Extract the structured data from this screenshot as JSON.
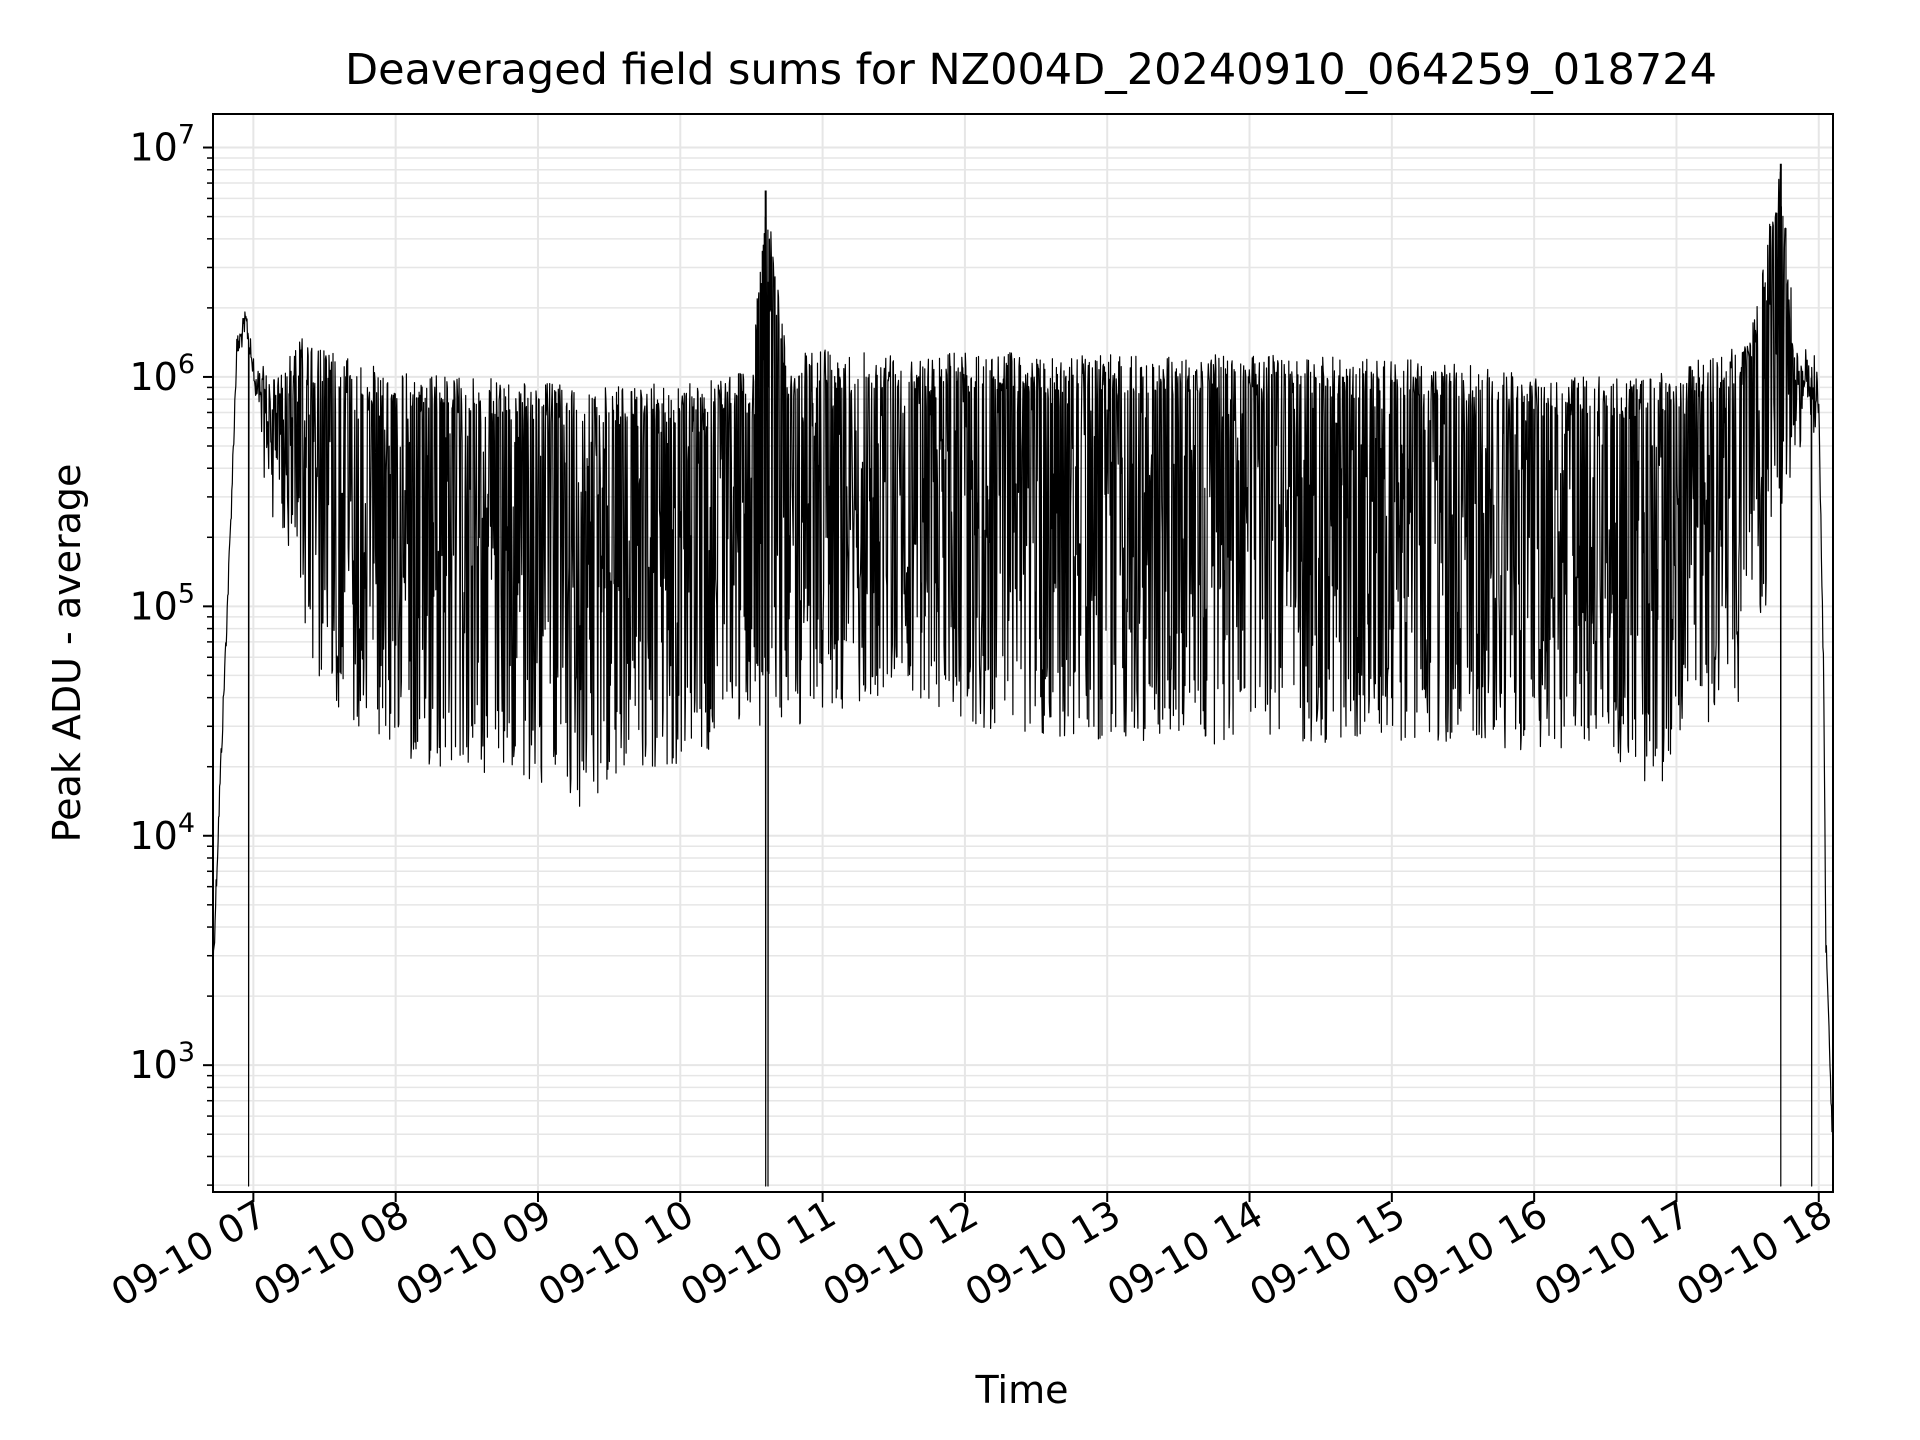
{
  "chart_data": {
    "type": "line",
    "title": "Deaveraged field sums for NZ004D_20240910_064259_018724",
    "xlabel": "Time",
    "ylabel": "Peak ADU - average",
    "yscale": "log",
    "ylim": [
      280,
      14000000
    ],
    "xlim": [
      "2024-09-10 06:42:59",
      "2024-09-10 18:06:00"
    ],
    "x_tick_values": [
      "2024-09-10 07:00",
      "2024-09-10 08:00",
      "2024-09-10 09:00",
      "2024-09-10 10:00",
      "2024-09-10 11:00",
      "2024-09-10 12:00",
      "2024-09-10 13:00",
      "2024-09-10 14:00",
      "2024-09-10 15:00",
      "2024-09-10 16:00",
      "2024-09-10 17:00",
      "2024-09-10 18:00"
    ],
    "x_tick_labels": [
      "09-10 07",
      "09-10 08",
      "09-10 09",
      "09-10 10",
      "09-10 11",
      "09-10 12",
      "09-10 13",
      "09-10 14",
      "09-10 15",
      "09-10 16",
      "09-10 17",
      "09-10 18"
    ],
    "y_ticks": [
      {
        "value": 1000,
        "base": "10",
        "exp": "3"
      },
      {
        "value": 10000,
        "base": "10",
        "exp": "4"
      },
      {
        "value": 100000,
        "base": "10",
        "exp": "5"
      },
      {
        "value": 1000000,
        "base": "10",
        "exp": "6"
      },
      {
        "value": 10000000,
        "base": "10",
        "exp": "7"
      }
    ],
    "grid": true,
    "grid_minor": true,
    "line_color": "#000000",
    "grid_color": "#e6e6e6",
    "series": [
      {
        "envelope_upper": [
          {
            "x": "06:43",
            "y": 3000
          },
          {
            "x": "06:46",
            "y": 20000
          },
          {
            "x": "06:50",
            "y": 200000
          },
          {
            "x": "06:53",
            "y": 1500000
          },
          {
            "x": "06:57",
            "y": 2000000
          },
          {
            "x": "07:00",
            "y": 1200000
          },
          {
            "x": "07:10",
            "y": 1000000
          },
          {
            "x": "07:20",
            "y": 1500000
          },
          {
            "x": "07:40",
            "y": 1200000
          },
          {
            "x": "08:00",
            "y": 1050000
          },
          {
            "x": "08:30",
            "y": 1000000
          },
          {
            "x": "09:00",
            "y": 950000
          },
          {
            "x": "09:30",
            "y": 900000
          },
          {
            "x": "10:00",
            "y": 950000
          },
          {
            "x": "10:30",
            "y": 1100000
          },
          {
            "x": "10:36",
            "y": 6500000
          },
          {
            "x": "10:45",
            "y": 1200000
          },
          {
            "x": "11:00",
            "y": 1350000
          },
          {
            "x": "11:30",
            "y": 1300000
          },
          {
            "x": "12:00",
            "y": 1300000
          },
          {
            "x": "13:00",
            "y": 1250000
          },
          {
            "x": "14:00",
            "y": 1250000
          },
          {
            "x": "15:00",
            "y": 1200000
          },
          {
            "x": "15:30",
            "y": 1150000
          },
          {
            "x": "16:00",
            "y": 1000000
          },
          {
            "x": "16:45",
            "y": 1000000
          },
          {
            "x": "17:00",
            "y": 1100000
          },
          {
            "x": "17:30",
            "y": 1400000
          },
          {
            "x": "17:44",
            "y": 8500000
          },
          {
            "x": "17:50",
            "y": 1500000
          },
          {
            "x": "17:58",
            "y": 1300000
          },
          {
            "x": "18:00",
            "y": 900000
          },
          {
            "x": "18:02",
            "y": 60000
          },
          {
            "x": "18:03",
            "y": 4000
          },
          {
            "x": "18:05",
            "y": 900
          },
          {
            "x": "18:06",
            "y": 500
          }
        ],
        "envelope_lower": [
          {
            "x": "07:00",
            "y": 600000
          },
          {
            "x": "07:10",
            "y": 200000
          },
          {
            "x": "07:30",
            "y": 40000
          },
          {
            "x": "08:00",
            "y": 22000
          },
          {
            "x": "08:30",
            "y": 18000
          },
          {
            "x": "09:00",
            "y": 17000
          },
          {
            "x": "09:20",
            "y": 13000
          },
          {
            "x": "09:40",
            "y": 20000
          },
          {
            "x": "10:00",
            "y": 20000
          },
          {
            "x": "10:30",
            "y": 30000
          },
          {
            "x": "11:00",
            "y": 30000
          },
          {
            "x": "11:30",
            "y": 40000
          },
          {
            "x": "12:00",
            "y": 30000
          },
          {
            "x": "13:00",
            "y": 25000
          },
          {
            "x": "14:00",
            "y": 25000
          },
          {
            "x": "15:00",
            "y": 25000
          },
          {
            "x": "15:30",
            "y": 26000
          },
          {
            "x": "16:00",
            "y": 22000
          },
          {
            "x": "16:30",
            "y": 24000
          },
          {
            "x": "16:52",
            "y": 15000
          },
          {
            "x": "17:00",
            "y": 25000
          },
          {
            "x": "17:30",
            "y": 40000
          },
          {
            "x": "17:50",
            "y": 450000
          },
          {
            "x": "18:00",
            "y": 600000
          }
        ]
      }
    ]
  }
}
